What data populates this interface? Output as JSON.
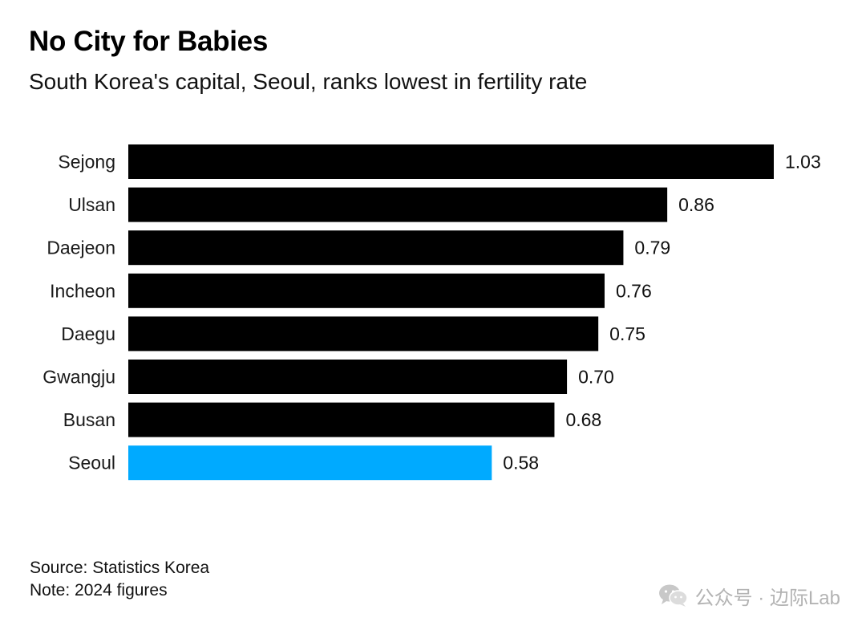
{
  "chart_data": {
    "type": "bar",
    "orientation": "horizontal",
    "title": "No City for Babies",
    "subtitle": "South Korea's capital, Seoul, ranks lowest in fertility rate",
    "categories": [
      "Sejong",
      "Ulsan",
      "Daejeon",
      "Incheon",
      "Daegu",
      "Gwangju",
      "Busan",
      "Seoul"
    ],
    "values": [
      1.03,
      0.86,
      0.79,
      0.76,
      0.75,
      0.7,
      0.68,
      0.58
    ],
    "value_labels": [
      "1.03",
      "0.86",
      "0.79",
      "0.76",
      "0.75",
      "0.70",
      "0.68",
      "0.58"
    ],
    "xlim": [
      0,
      1.03
    ],
    "grid": false,
    "highlight_category": "Seoul",
    "colors": {
      "default": "#000000",
      "highlight": "#00aaff"
    }
  },
  "footer": {
    "source": "Source: Statistics Korea",
    "note": "Note: 2024 figures"
  },
  "watermark": {
    "text": "公众号 · 边际Lab",
    "icon": "wechat-icon"
  }
}
